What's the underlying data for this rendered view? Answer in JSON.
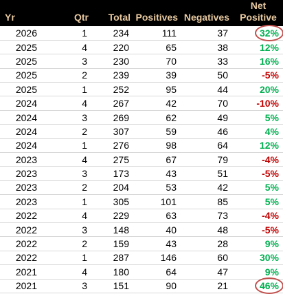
{
  "colors": {
    "header_bg": "#000000",
    "header_text": "#e8c9a0",
    "positive": "#00b050",
    "negative": "#c00000",
    "circle": "#c0504d"
  },
  "headers": {
    "yr": "Yr",
    "qtr": "Qtr",
    "total": "Total",
    "positives": "Positives",
    "negatives": "Negatives",
    "net_line1": "Net",
    "net_line2": "Positive"
  },
  "rows": [
    {
      "yr": "2026",
      "qtr": "1",
      "total": "234",
      "positives": "111",
      "negatives": "37",
      "net": "32%",
      "sign": "pos",
      "circled": true
    },
    {
      "yr": "2025",
      "qtr": "4",
      "total": "220",
      "positives": "65",
      "negatives": "38",
      "net": "12%",
      "sign": "pos",
      "circled": false
    },
    {
      "yr": "2025",
      "qtr": "3",
      "total": "230",
      "positives": "70",
      "negatives": "33",
      "net": "16%",
      "sign": "pos",
      "circled": false
    },
    {
      "yr": "2025",
      "qtr": "2",
      "total": "239",
      "positives": "39",
      "negatives": "50",
      "net": "-5%",
      "sign": "neg",
      "circled": false
    },
    {
      "yr": "2025",
      "qtr": "1",
      "total": "252",
      "positives": "95",
      "negatives": "44",
      "net": "20%",
      "sign": "pos",
      "circled": false
    },
    {
      "yr": "2024",
      "qtr": "4",
      "total": "267",
      "positives": "42",
      "negatives": "70",
      "net": "-10%",
      "sign": "neg",
      "circled": false
    },
    {
      "yr": "2024",
      "qtr": "3",
      "total": "269",
      "positives": "62",
      "negatives": "49",
      "net": "5%",
      "sign": "pos",
      "circled": false
    },
    {
      "yr": "2024",
      "qtr": "2",
      "total": "307",
      "positives": "59",
      "negatives": "46",
      "net": "4%",
      "sign": "pos",
      "circled": false
    },
    {
      "yr": "2024",
      "qtr": "1",
      "total": "276",
      "positives": "98",
      "negatives": "64",
      "net": "12%",
      "sign": "pos",
      "circled": false
    },
    {
      "yr": "2023",
      "qtr": "4",
      "total": "275",
      "positives": "67",
      "negatives": "79",
      "net": "-4%",
      "sign": "neg",
      "circled": false
    },
    {
      "yr": "2023",
      "qtr": "3",
      "total": "173",
      "positives": "43",
      "negatives": "51",
      "net": "-5%",
      "sign": "neg",
      "circled": false
    },
    {
      "yr": "2023",
      "qtr": "2",
      "total": "204",
      "positives": "53",
      "negatives": "42",
      "net": "5%",
      "sign": "pos",
      "circled": false
    },
    {
      "yr": "2023",
      "qtr": "1",
      "total": "305",
      "positives": "101",
      "negatives": "85",
      "net": "5%",
      "sign": "pos",
      "circled": false
    },
    {
      "yr": "2022",
      "qtr": "4",
      "total": "229",
      "positives": "63",
      "negatives": "73",
      "net": "-4%",
      "sign": "neg",
      "circled": false
    },
    {
      "yr": "2022",
      "qtr": "3",
      "total": "148",
      "positives": "40",
      "negatives": "48",
      "net": "-5%",
      "sign": "neg",
      "circled": false
    },
    {
      "yr": "2022",
      "qtr": "2",
      "total": "159",
      "positives": "43",
      "negatives": "28",
      "net": "9%",
      "sign": "pos",
      "circled": false
    },
    {
      "yr": "2022",
      "qtr": "1",
      "total": "287",
      "positives": "146",
      "negatives": "60",
      "net": "30%",
      "sign": "pos",
      "circled": false
    },
    {
      "yr": "2021",
      "qtr": "4",
      "total": "180",
      "positives": "64",
      "negatives": "47",
      "net": "9%",
      "sign": "pos",
      "circled": false
    },
    {
      "yr": "2021",
      "qtr": "3",
      "total": "151",
      "positives": "90",
      "negatives": "21",
      "net": "46%",
      "sign": "pos",
      "circled": true
    }
  ]
}
